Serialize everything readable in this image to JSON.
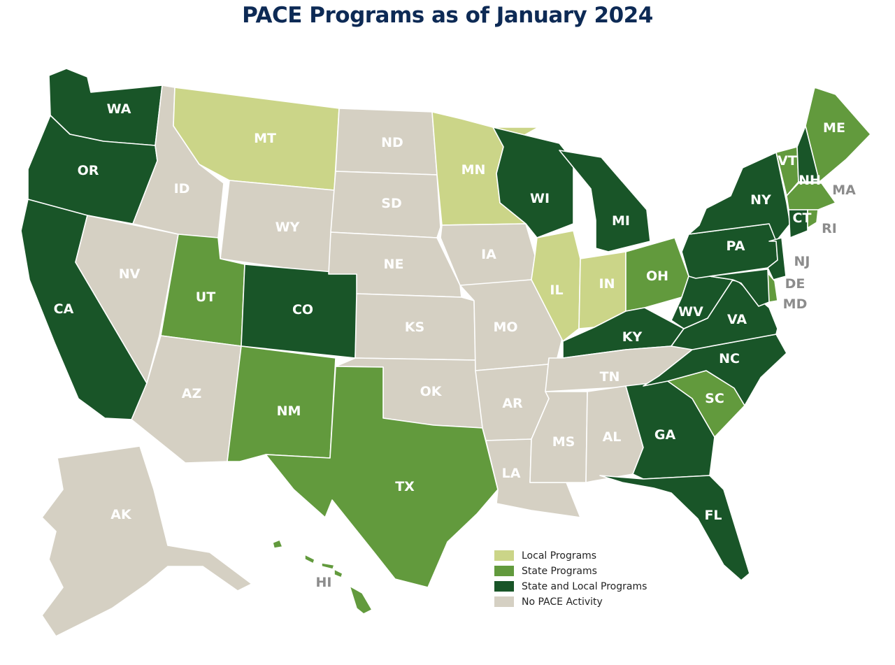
{
  "title": "PACE Programs as of January 2024",
  "colors": {
    "title": "#0d2a55",
    "local": "#cbd588",
    "state": "#629a3d",
    "state_local": "#195528",
    "none": "#d5d0c3",
    "hi_local_marker": "#4b8c33"
  },
  "legend": [
    {
      "key": "local",
      "label": "Local Programs"
    },
    {
      "key": "state",
      "label": "State Programs"
    },
    {
      "key": "state_local",
      "label": "State and Local Programs"
    },
    {
      "key": "none",
      "label": "No PACE Activity"
    }
  ],
  "states": [
    {
      "abbr": "WA",
      "category": "state_local"
    },
    {
      "abbr": "OR",
      "category": "state_local"
    },
    {
      "abbr": "CA",
      "category": "state_local"
    },
    {
      "abbr": "NV",
      "category": "none"
    },
    {
      "abbr": "ID",
      "category": "none"
    },
    {
      "abbr": "MT",
      "category": "local"
    },
    {
      "abbr": "WY",
      "category": "none"
    },
    {
      "abbr": "UT",
      "category": "state"
    },
    {
      "abbr": "CO",
      "category": "state_local"
    },
    {
      "abbr": "AZ",
      "category": "none"
    },
    {
      "abbr": "NM",
      "category": "state"
    },
    {
      "abbr": "ND",
      "category": "none"
    },
    {
      "abbr": "SD",
      "category": "none"
    },
    {
      "abbr": "NE",
      "category": "none"
    },
    {
      "abbr": "KS",
      "category": "none"
    },
    {
      "abbr": "OK",
      "category": "none"
    },
    {
      "abbr": "TX",
      "category": "state"
    },
    {
      "abbr": "MN",
      "category": "local"
    },
    {
      "abbr": "IA",
      "category": "none"
    },
    {
      "abbr": "MO",
      "category": "none"
    },
    {
      "abbr": "AR",
      "category": "none"
    },
    {
      "abbr": "LA",
      "category": "none"
    },
    {
      "abbr": "WI",
      "category": "state_local"
    },
    {
      "abbr": "IL",
      "category": "local"
    },
    {
      "abbr": "MI",
      "category": "state_local"
    },
    {
      "abbr": "IN",
      "category": "local"
    },
    {
      "abbr": "OH",
      "category": "state"
    },
    {
      "abbr": "KY",
      "category": "state_local"
    },
    {
      "abbr": "TN",
      "category": "none"
    },
    {
      "abbr": "MS",
      "category": "none"
    },
    {
      "abbr": "AL",
      "category": "none"
    },
    {
      "abbr": "GA",
      "category": "state_local"
    },
    {
      "abbr": "FL",
      "category": "state_local"
    },
    {
      "abbr": "SC",
      "category": "state"
    },
    {
      "abbr": "NC",
      "category": "state_local"
    },
    {
      "abbr": "VA",
      "category": "state_local"
    },
    {
      "abbr": "WV",
      "category": "state_local"
    },
    {
      "abbr": "PA",
      "category": "state_local"
    },
    {
      "abbr": "NY",
      "category": "state_local"
    },
    {
      "abbr": "VT",
      "category": "state"
    },
    {
      "abbr": "NH",
      "category": "state_local"
    },
    {
      "abbr": "ME",
      "category": "state"
    },
    {
      "abbr": "MA",
      "category": "state"
    },
    {
      "abbr": "CT",
      "category": "state_local"
    },
    {
      "abbr": "RI",
      "category": "state"
    },
    {
      "abbr": "NJ",
      "category": "state_local"
    },
    {
      "abbr": "DE",
      "category": "state"
    },
    {
      "abbr": "MD",
      "category": "state_local"
    },
    {
      "abbr": "AK",
      "category": "none"
    },
    {
      "abbr": "HI",
      "category": "state"
    }
  ]
}
